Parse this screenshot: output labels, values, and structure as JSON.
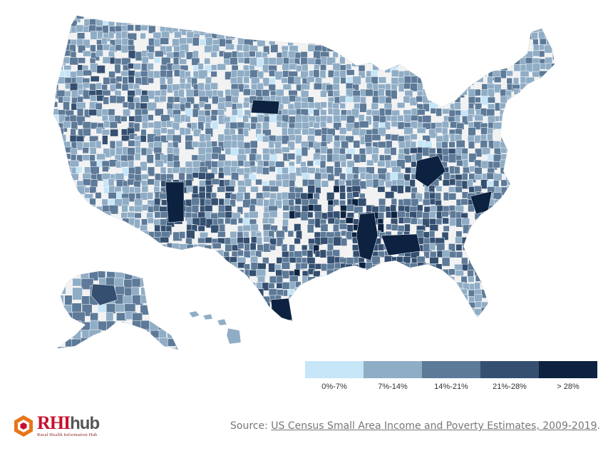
{
  "legend": {
    "items": [
      {
        "label": "0%-7%",
        "color": "#c6e6f8"
      },
      {
        "label": "7%-14%",
        "color": "#90adc6"
      },
      {
        "label": "14%-21%",
        "color": "#5d7a98"
      },
      {
        "label": "21%-28%",
        "color": "#344f70"
      },
      {
        "label": "> 28%",
        "color": "#0c2240"
      }
    ]
  },
  "map": {
    "nodata_color": "#f2f2f2",
    "regions_shown": [
      "Contiguous United States",
      "Alaska",
      "Hawaii"
    ],
    "high_rate_areas": [
      {
        "area": "Mississippi Delta",
        "level": "> 28%"
      },
      {
        "area": "Central Appalachia (eastern Kentucky)",
        "level": "> 28%"
      },
      {
        "area": "Alabama Black Belt",
        "level": "> 28%"
      },
      {
        "area": "Lower Rio Grande Valley, Texas",
        "level": "> 28%"
      },
      {
        "area": "South Dakota reservations",
        "level": "> 28%"
      },
      {
        "area": "Navajo Nation (Arizona/New Mexico)",
        "level": "> 28%"
      },
      {
        "area": "Southwest Alaska",
        "level": "21%-28%"
      }
    ]
  },
  "source": {
    "prefix": "Source: ",
    "link_text": "US Census Small Area Income and Poverty Estimates, 2009-2019",
    "suffix": "."
  },
  "logo": {
    "rhi": "RHI",
    "hub": "hub",
    "tagline": "Rural Health Information Hub"
  }
}
